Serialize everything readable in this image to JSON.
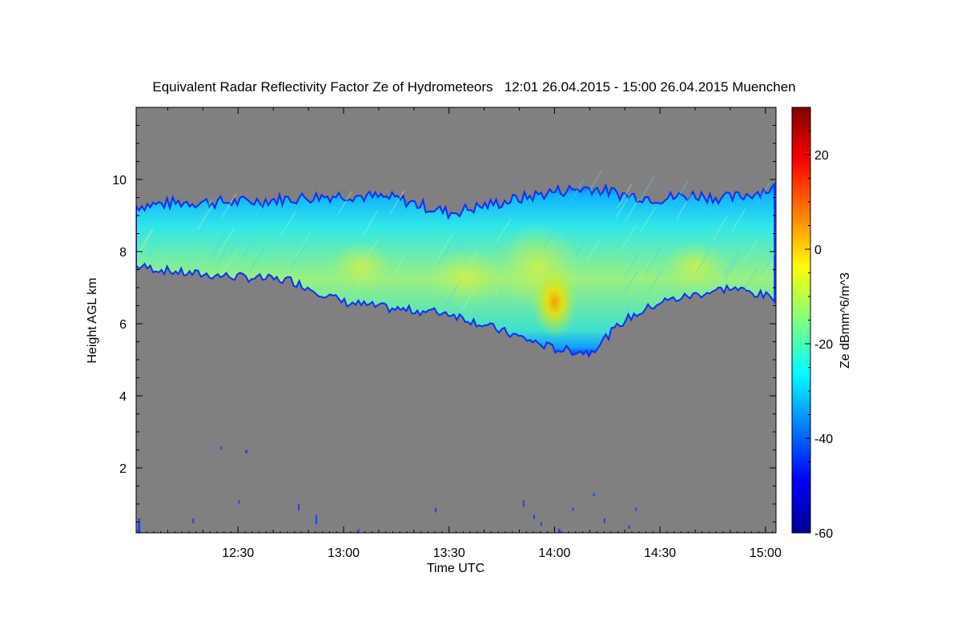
{
  "chart_data": {
    "type": "heatmap",
    "title": "Equivalent Radar Reflectivity Factor Ze of Hydrometeors   12:01 26.04.2015 - 15:00 26.04.2015 Muenchen",
    "xlabel": "Time UTC",
    "ylabel": "Height AGL km",
    "colorbar_label": "Ze dBmm^6/m^3",
    "x_range_minutes_utc": [
      721,
      903
    ],
    "x_ticks": [
      {
        "minute": 750,
        "label": "12:30"
      },
      {
        "minute": 780,
        "label": "13:00"
      },
      {
        "minute": 810,
        "label": "13:30"
      },
      {
        "minute": 840,
        "label": "14:00"
      },
      {
        "minute": 870,
        "label": "14:30"
      },
      {
        "minute": 900,
        "label": "15:00"
      }
    ],
    "ylim": [
      0.2,
      12
    ],
    "y_ticks": [
      2,
      4,
      6,
      8,
      10
    ],
    "colorbar_range": [
      -60,
      30
    ],
    "colorbar_ticks": [
      -60,
      -40,
      -20,
      0,
      20
    ],
    "colormap": "jet",
    "background_color": "#808080",
    "cloud_layer": {
      "description_points_minutes": [
        721,
        735,
        750,
        765,
        780,
        795,
        810,
        825,
        840,
        850,
        860,
        870,
        880,
        890,
        903
      ],
      "top_km": [
        9.2,
        9.3,
        9.3,
        9.4,
        9.5,
        9.4,
        9.0,
        9.3,
        9.6,
        9.7,
        9.5,
        9.4,
        9.5,
        9.4,
        9.7
      ],
      "base_km": [
        7.6,
        7.4,
        7.3,
        7.2,
        6.6,
        6.4,
        6.3,
        5.8,
        5.3,
        5.2,
        6.1,
        6.6,
        6.8,
        7.0,
        6.7
      ],
      "peak_ze_dbz": [
        -28,
        -26,
        -24,
        -18,
        -16,
        -14,
        -14,
        -12,
        -2,
        -6,
        -12,
        -14,
        -14,
        -18,
        -20
      ]
    }
  }
}
